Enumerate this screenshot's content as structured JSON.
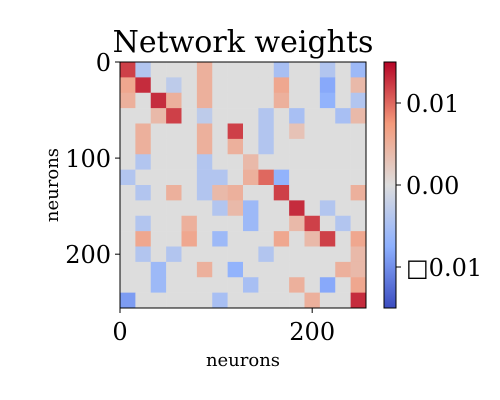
{
  "chart_data": {
    "type": "heatmap",
    "title": "Network weights",
    "xlabel": "neurons",
    "ylabel": "neurons",
    "x_range": [
      0,
      256
    ],
    "y_range": [
      0,
      256
    ],
    "y_inverted": true,
    "x_ticks": [
      "0",
      "200"
    ],
    "y_ticks": [
      "0",
      "100",
      "200"
    ],
    "x_tick_values": [
      0,
      200
    ],
    "y_tick_values": [
      0,
      100,
      200
    ],
    "colormap": "coolwarm",
    "value_range": [
      -0.015,
      0.015
    ],
    "colorbar": {
      "ticks": [
        0.01,
        0.0,
        -0.01
      ],
      "tick_labels": [
        "0.01",
        "0.00",
        "□0.01"
      ]
    },
    "block_size": 16,
    "block_values": [
      [
        0.012,
        -0.004,
        0.0,
        0.0,
        0.0,
        0.005,
        0.0,
        0.0,
        0.0,
        0.0,
        -0.005,
        0.0,
        0.0,
        -0.004,
        0.0,
        -0.006
      ],
      [
        0.006,
        0.013,
        0.0,
        -0.003,
        0.0,
        0.005,
        0.0,
        0.0,
        0.0,
        0.0,
        0.006,
        0.0,
        0.0,
        -0.008,
        0.0,
        0.004
      ],
      [
        0.005,
        0.0,
        0.013,
        0.005,
        0.0,
        0.005,
        0.0,
        0.0,
        0.0,
        0.0,
        0.005,
        0.0,
        0.0,
        -0.007,
        0.0,
        -0.004
      ],
      [
        0.0,
        0.0,
        0.004,
        0.012,
        0.0,
        -0.003,
        0.0,
        0.0,
        0.0,
        -0.004,
        0.0,
        -0.005,
        0.0,
        0.0,
        -0.005,
        0.004
      ],
      [
        0.0,
        0.005,
        0.0,
        0.0,
        0.0,
        0.005,
        0.0,
        0.012,
        0.0,
        -0.004,
        0.0,
        0.003,
        0.0,
        0.0,
        0.0,
        0.0
      ],
      [
        0.0,
        0.005,
        0.0,
        0.0,
        0.0,
        0.005,
        0.0,
        0.005,
        0.0,
        -0.004,
        0.0,
        0.0,
        0.0,
        0.0,
        0.0,
        0.0
      ],
      [
        0.0,
        -0.004,
        0.0,
        0.0,
        0.0,
        -0.004,
        0.0,
        0.0,
        0.004,
        0.0,
        0.0,
        0.0,
        0.0,
        0.0,
        0.0,
        0.0
      ],
      [
        -0.004,
        0.0,
        0.0,
        0.0,
        0.0,
        -0.004,
        -0.004,
        0.0,
        0.005,
        0.01,
        -0.007,
        0.0,
        0.0,
        0.0,
        0.0,
        0.0
      ],
      [
        0.0,
        -0.004,
        0.0,
        0.005,
        0.0,
        -0.004,
        0.004,
        0.005,
        0.0,
        0.0,
        0.012,
        0.0,
        0.0,
        0.0,
        0.0,
        0.005
      ],
      [
        0.0,
        0.0,
        0.0,
        0.0,
        0.0,
        0.0,
        -0.004,
        0.004,
        -0.006,
        0.0,
        0.0,
        0.013,
        0.0,
        -0.004,
        0.0,
        0.0
      ],
      [
        0.0,
        -0.004,
        0.0,
        0.0,
        0.005,
        0.0,
        0.0,
        0.0,
        -0.006,
        0.0,
        0.0,
        0.004,
        0.012,
        0.0,
        -0.004,
        0.0
      ],
      [
        0.0,
        0.006,
        0.0,
        0.0,
        0.006,
        0.0,
        -0.006,
        0.0,
        0.0,
        0.0,
        0.006,
        0.0,
        0.004,
        0.012,
        0.0,
        0.006
      ],
      [
        0.0,
        -0.004,
        0.0,
        -0.004,
        0.0,
        0.0,
        0.0,
        0.0,
        0.0,
        -0.004,
        0.0,
        0.0,
        0.0,
        0.0,
        0.0,
        0.004
      ],
      [
        0.0,
        0.0,
        -0.006,
        0.0,
        0.0,
        0.005,
        0.0,
        -0.007,
        0.0,
        0.0,
        0.0,
        0.0,
        0.0,
        0.0,
        0.005,
        0.004
      ],
      [
        0.0,
        0.0,
        -0.006,
        0.0,
        0.0,
        0.0,
        0.0,
        0.0,
        -0.005,
        0.0,
        0.0,
        0.005,
        0.0,
        -0.008,
        0.0,
        0.006
      ],
      [
        -0.009,
        0.0,
        0.0,
        0.0,
        0.0,
        0.0,
        -0.005,
        0.0,
        0.0,
        0.0,
        0.0,
        0.0,
        0.005,
        0.0,
        0.0,
        0.013
      ]
    ]
  }
}
